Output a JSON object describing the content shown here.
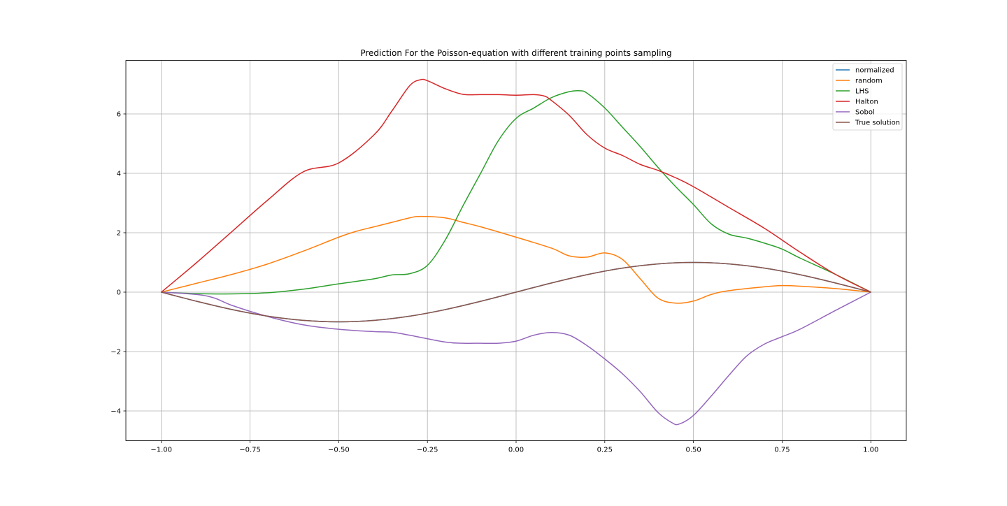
{
  "chart_data": {
    "type": "line",
    "title": "Prediction For the Poisson-equation with different training points sampling",
    "xlabel": "",
    "ylabel": "",
    "xlim": [
      -1.1,
      1.1
    ],
    "ylim": [
      -5.0,
      7.8
    ],
    "xticks": [
      -1.0,
      -0.75,
      -0.5,
      -0.25,
      0.0,
      0.25,
      0.5,
      0.75,
      1.0
    ],
    "xtick_labels": [
      "−1.00",
      "−0.75",
      "−0.50",
      "−0.25",
      "0.00",
      "0.25",
      "0.50",
      "0.75",
      "1.00"
    ],
    "yticks": [
      -4,
      -2,
      0,
      2,
      4,
      6
    ],
    "ytick_labels": [
      "−4",
      "−2",
      "0",
      "2",
      "4",
      "6"
    ],
    "grid": true,
    "legend_position": "top-right",
    "series": [
      {
        "name": "normalized",
        "color": "#1f77b4",
        "x": [
          -1.0,
          -0.9,
          -0.8,
          -0.7,
          -0.6,
          -0.5,
          -0.4,
          -0.3,
          -0.2,
          -0.1,
          0.0,
          0.1,
          0.2,
          0.3,
          0.4,
          0.5,
          0.6,
          0.7,
          0.8,
          0.9,
          1.0
        ],
        "y": [
          0.0,
          -0.309,
          -0.588,
          -0.809,
          -0.951,
          -1.0,
          -0.951,
          -0.809,
          -0.588,
          -0.309,
          0.0,
          0.309,
          0.588,
          0.809,
          0.951,
          1.0,
          0.951,
          0.809,
          0.588,
          0.309,
          0.0
        ]
      },
      {
        "name": "random",
        "color": "#ff7f0e",
        "x": [
          -1.0,
          -0.9,
          -0.8,
          -0.7,
          -0.6,
          -0.5,
          -0.45,
          -0.4,
          -0.35,
          -0.3,
          -0.27,
          -0.2,
          -0.15,
          -0.1,
          0.0,
          0.1,
          0.15,
          0.2,
          0.25,
          0.3,
          0.35,
          0.4,
          0.45,
          0.5,
          0.55,
          0.6,
          0.7,
          0.75,
          0.8,
          0.9,
          1.0
        ],
        "y": [
          0.0,
          0.3,
          0.6,
          0.95,
          1.38,
          1.85,
          2.05,
          2.2,
          2.35,
          2.5,
          2.55,
          2.5,
          2.35,
          2.2,
          1.85,
          1.48,
          1.22,
          1.18,
          1.32,
          1.1,
          0.45,
          -0.2,
          -0.37,
          -0.3,
          -0.08,
          0.05,
          0.18,
          0.22,
          0.2,
          0.12,
          0.0
        ]
      },
      {
        "name": "LHS",
        "color": "#2ca02c",
        "x": [
          -1.0,
          -0.9,
          -0.8,
          -0.7,
          -0.6,
          -0.5,
          -0.4,
          -0.35,
          -0.3,
          -0.25,
          -0.2,
          -0.15,
          -0.1,
          -0.05,
          0.0,
          0.05,
          0.1,
          0.15,
          0.18,
          0.2,
          0.25,
          0.3,
          0.35,
          0.4,
          0.45,
          0.5,
          0.55,
          0.6,
          0.65,
          0.7,
          0.75,
          0.8,
          0.9,
          1.0
        ],
        "y": [
          0.0,
          -0.05,
          -0.06,
          -0.02,
          0.1,
          0.28,
          0.45,
          0.58,
          0.62,
          0.9,
          1.75,
          2.9,
          4.0,
          5.1,
          5.85,
          6.2,
          6.55,
          6.75,
          6.78,
          6.7,
          6.2,
          5.55,
          4.9,
          4.2,
          3.55,
          2.95,
          2.3,
          1.95,
          1.82,
          1.65,
          1.45,
          1.15,
          0.6,
          0.0
        ]
      },
      {
        "name": "Halton",
        "color": "#d62728",
        "x": [
          -1.0,
          -0.9,
          -0.8,
          -0.7,
          -0.6,
          -0.5,
          -0.4,
          -0.35,
          -0.3,
          -0.27,
          -0.25,
          -0.2,
          -0.15,
          -0.1,
          -0.05,
          0.0,
          0.05,
          0.08,
          0.1,
          0.15,
          0.2,
          0.25,
          0.3,
          0.35,
          0.4,
          0.45,
          0.5,
          0.6,
          0.7,
          0.8,
          0.9,
          1.0
        ],
        "y": [
          0.0,
          1.0,
          2.05,
          3.1,
          4.05,
          4.35,
          5.3,
          6.1,
          6.95,
          7.15,
          7.12,
          6.85,
          6.66,
          6.65,
          6.65,
          6.63,
          6.65,
          6.6,
          6.45,
          5.95,
          5.3,
          4.85,
          4.6,
          4.3,
          4.1,
          3.85,
          3.55,
          2.85,
          2.15,
          1.35,
          0.6,
          0.0
        ]
      },
      {
        "name": "Sobol",
        "color": "#9467bd",
        "x": [
          -1.0,
          -0.9,
          -0.85,
          -0.8,
          -0.7,
          -0.6,
          -0.5,
          -0.4,
          -0.35,
          -0.3,
          -0.2,
          -0.15,
          -0.1,
          -0.05,
          0.0,
          0.05,
          0.1,
          0.15,
          0.2,
          0.25,
          0.3,
          0.35,
          0.4,
          0.44,
          0.46,
          0.5,
          0.55,
          0.6,
          0.65,
          0.7,
          0.75,
          0.8,
          0.9,
          1.0
        ],
        "y": [
          0.0,
          -0.08,
          -0.2,
          -0.45,
          -0.82,
          -1.1,
          -1.25,
          -1.33,
          -1.35,
          -1.45,
          -1.68,
          -1.72,
          -1.72,
          -1.72,
          -1.65,
          -1.45,
          -1.36,
          -1.45,
          -1.8,
          -2.25,
          -2.75,
          -3.35,
          -4.05,
          -4.4,
          -4.44,
          -4.15,
          -3.5,
          -2.8,
          -2.15,
          -1.75,
          -1.5,
          -1.25,
          -0.62,
          0.0
        ]
      },
      {
        "name": "True solution",
        "color": "#8c564b",
        "x": [
          -1.0,
          -0.9,
          -0.8,
          -0.7,
          -0.6,
          -0.5,
          -0.4,
          -0.3,
          -0.2,
          -0.1,
          0.0,
          0.1,
          0.2,
          0.3,
          0.4,
          0.5,
          0.6,
          0.7,
          0.8,
          0.9,
          1.0
        ],
        "y": [
          0.0,
          -0.309,
          -0.588,
          -0.809,
          -0.951,
          -1.0,
          -0.951,
          -0.809,
          -0.588,
          -0.309,
          0.0,
          0.309,
          0.588,
          0.809,
          0.951,
          1.0,
          0.951,
          0.809,
          0.588,
          0.309,
          0.0
        ]
      }
    ]
  }
}
